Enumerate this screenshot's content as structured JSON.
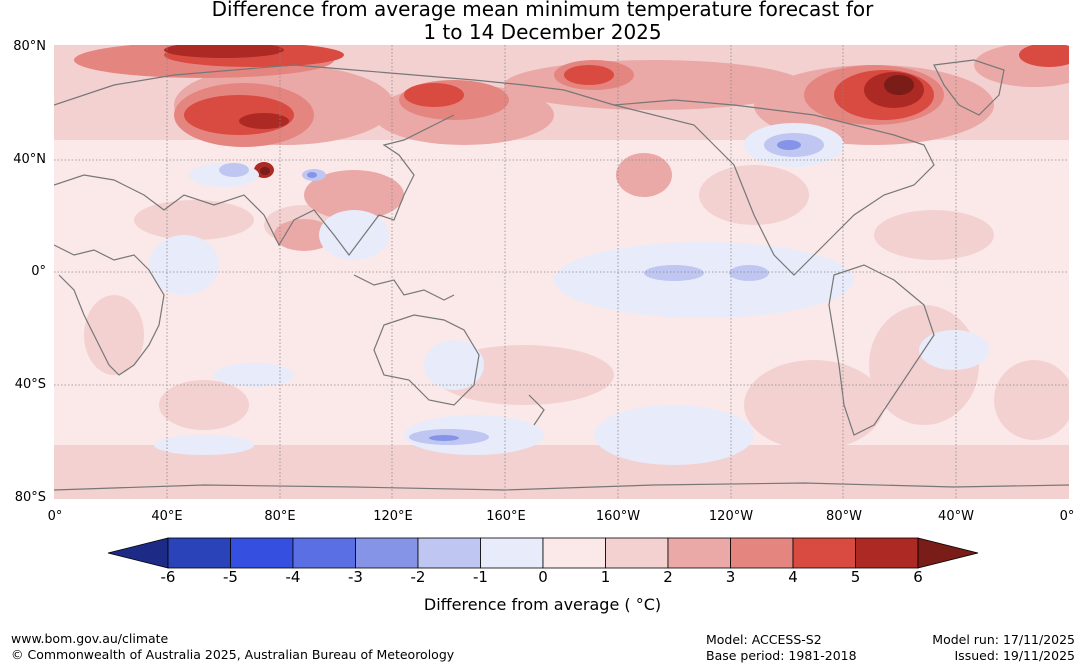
{
  "title_line1": "Difference from average mean minimum temperature forecast for",
  "title_line2": "1 to 14 December 2025",
  "lat_labels": [
    "80°N",
    "40°N",
    "0°",
    "40°S",
    "80°S"
  ],
  "lon_labels": [
    "0°",
    "40°E",
    "80°E",
    "120°E",
    "160°E",
    "160°W",
    "120°W",
    "80°W",
    "40°W",
    "0°"
  ],
  "colorbar": {
    "ticks": [
      "-6",
      "-5",
      "-4",
      "-3",
      "-2",
      "-1",
      "0",
      "1",
      "2",
      "3",
      "4",
      "5",
      "6"
    ],
    "colors": [
      "#1e2b86",
      "#2a43b8",
      "#3550e0",
      "#5a6fe4",
      "#8694e8",
      "#bfc6f1",
      "#e8ebfa",
      "#fbe9e9",
      "#f3d1d1",
      "#eaa9a7",
      "#e58580",
      "#d94a40",
      "#ad2a24",
      "#7a1c17"
    ],
    "label": "Difference from average ( °C)"
  },
  "footer": {
    "url": "www.bom.gov.au/climate",
    "copyright": "© Commonwealth of Australia 2025, Australian Bureau of Meteorology",
    "model": "Model: ACCESS-S2",
    "base_period": "Base period: 1981-2018",
    "model_run": "Model run: 17/11/2025",
    "issued": "Issued: 19/11/2025"
  }
}
